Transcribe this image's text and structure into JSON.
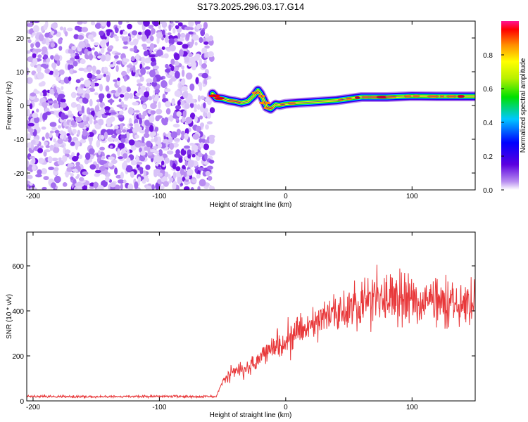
{
  "chart_data": [
    {
      "type": "heatmap",
      "title": "S173.2025.296.03.17.G14",
      "xlabel": "Height of straight line (km)",
      "ylabel": "Frequency (Hz)",
      "xlim": [
        -205,
        150
      ],
      "ylim": [
        -25,
        25
      ],
      "x_ticks": [
        -200,
        -100,
        0,
        100
      ],
      "y_ticks": [
        -20,
        -10,
        0,
        10,
        20
      ],
      "colorbar": {
        "label": "Normalized spectral amplitude",
        "range": [
          0,
          1
        ],
        "ticks": [
          "0.0",
          "0.2",
          "0.4",
          "0.6",
          "0.8"
        ],
        "tick_values": [
          0,
          0.2,
          0.4,
          0.6,
          0.8
        ]
      },
      "noise_region": {
        "x_range": [
          -205,
          -58
        ],
        "description_values": "scattered low amplitude 0.0-0.2"
      },
      "signal_ridge": {
        "x": [
          -58,
          -55,
          -50,
          -45,
          -40,
          -35,
          -30,
          -25,
          -22,
          -20,
          -18,
          -15,
          -12,
          -8,
          -5,
          0,
          10,
          20,
          40,
          60,
          80,
          100,
          120,
          150
        ],
        "frequency": [
          3.5,
          2.2,
          2.0,
          1.5,
          1.2,
          0.8,
          1.2,
          3.0,
          4.5,
          3.5,
          2.0,
          -0.5,
          -1.0,
          0.3,
          0.1,
          0.5,
          0.8,
          1.0,
          1.5,
          2.5,
          2.5,
          2.8,
          2.7,
          2.7
        ],
        "peak_amplitude": 0.95
      }
    },
    {
      "type": "line",
      "title": "",
      "xlabel": "Height of straight line (km)",
      "ylabel": "SNR (10 * v/v)",
      "xlim": [
        -205,
        150
      ],
      "ylim": [
        0,
        750
      ],
      "x_ticks": [
        -200,
        -100,
        0,
        100
      ],
      "y_ticks": [
        0,
        200,
        400,
        600
      ],
      "color": "#e8383a",
      "series": [
        {
          "name": "SNR",
          "x": [
            -205,
            -180,
            -150,
            -120,
            -90,
            -70,
            -55,
            -50,
            -45,
            -40,
            -30,
            -20,
            -10,
            0,
            10,
            20,
            30,
            40,
            50,
            60,
            70,
            80,
            90,
            100,
            110,
            120,
            130,
            140,
            150
          ],
          "values": [
            20,
            20,
            18,
            20,
            20,
            19,
            20,
            85,
            120,
            130,
            150,
            200,
            250,
            270,
            300,
            330,
            370,
            400,
            420,
            440,
            460,
            450,
            460,
            450,
            430,
            460,
            440,
            420,
            430
          ]
        }
      ]
    }
  ]
}
